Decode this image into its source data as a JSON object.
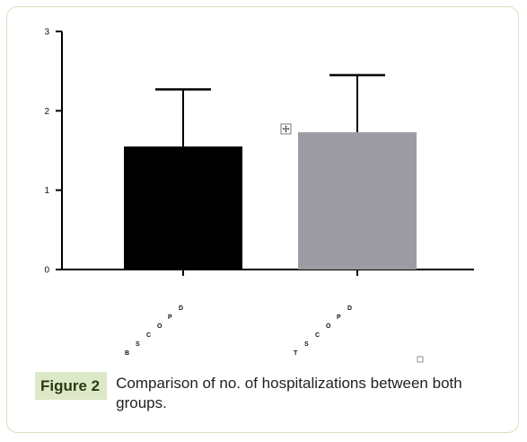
{
  "colors": {
    "frame": "#d6e3bd",
    "label_bg": "#dde8c8",
    "label_text": "#2b3a12",
    "bar1": "#000000",
    "bar2": "#9d9ca2"
  },
  "chart_data": {
    "type": "bar",
    "categories": [
      "BSCOPD",
      "TSCOPD"
    ],
    "category_letters": [
      [
        "B",
        "S",
        "C",
        "O",
        "P",
        "D"
      ],
      [
        "T",
        "S",
        "C",
        "O",
        "P",
        "D"
      ]
    ],
    "values": [
      1.55,
      1.73
    ],
    "errors": [
      0.72,
      0.72
    ],
    "bar_colors": [
      "#000000",
      "#9d9ca2"
    ],
    "ylim": [
      0,
      3
    ],
    "yticks": [
      "0",
      "1",
      "2",
      "3"
    ],
    "grid": false,
    "title": "",
    "xlabel": "",
    "ylabel": ""
  },
  "caption": {
    "label": "Figure 2",
    "text": "Comparison of no. of hospitalizations between both groups."
  }
}
